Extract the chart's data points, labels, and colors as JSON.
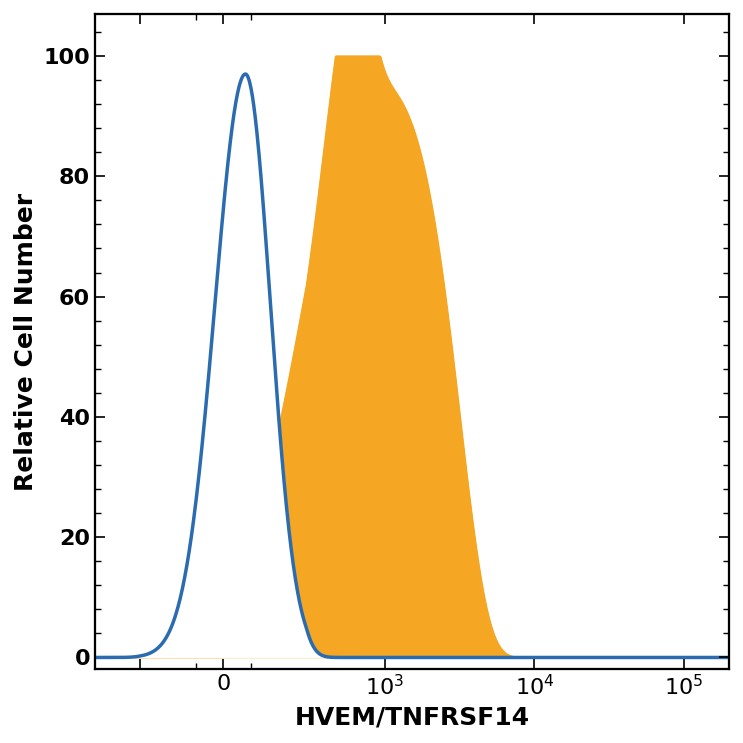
{
  "xlabel": "HVEM/TNFRSF14",
  "ylabel": "Relative Cell Number",
  "ylim": [
    -2,
    107
  ],
  "yticks": [
    0,
    20,
    40,
    60,
    80,
    100
  ],
  "background_color": "#ffffff",
  "isotype_color": "#2b6cb0",
  "filled_color": "#f5a623",
  "label_fontsize": 18,
  "tick_fontsize": 16,
  "linewidth": 2.5
}
